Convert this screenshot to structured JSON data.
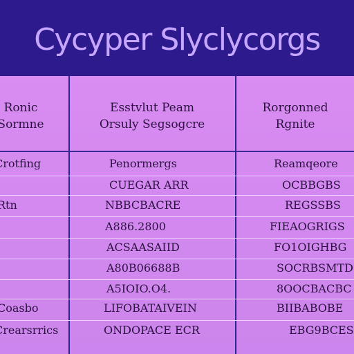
{
  "banner": {
    "title": "Cycyper Slyclycorgs"
  },
  "header": {
    "col1": [
      "Ronic",
      "Sormne"
    ],
    "col2": [
      "Esstvlut Peam",
      "Orsuly Segsogcre"
    ],
    "col3": [
      "Rorgonned",
      "Rgnite"
    ]
  },
  "rows": [
    {
      "c1": "Crotfing",
      "c2": "Penormergs",
      "c3": "Reamqeore"
    },
    {
      "c1": "",
      "c2": "CUEGAR ARR",
      "c3": "OCBBGBS"
    },
    {
      "c1": "Rtn",
      "c2": "NBBCBACRE",
      "c3": "REGSSBS"
    },
    {
      "c1": "",
      "c2": "A886.2800",
      "c3": "FIEAOGRIGS"
    },
    {
      "c1": "",
      "c2": "ACSAASAIID",
      "c3": "FO1OIGHBG"
    },
    {
      "c1": "",
      "c2": "A80B06688B",
      "c3": "SOCRBSMTD"
    },
    {
      "c1": "",
      "c2": "A5IOIO.O4.",
      "c3": "8OOCBACBC"
    },
    {
      "c1": "Coasbo",
      "c2": "LIFOBATAIVEIN",
      "c3": "BIIBABOBE"
    },
    {
      "c1": "Crearsrrics",
      "c2": "ONDOPACE ECR",
      "c3": "EBG9BCES"
    }
  ]
}
